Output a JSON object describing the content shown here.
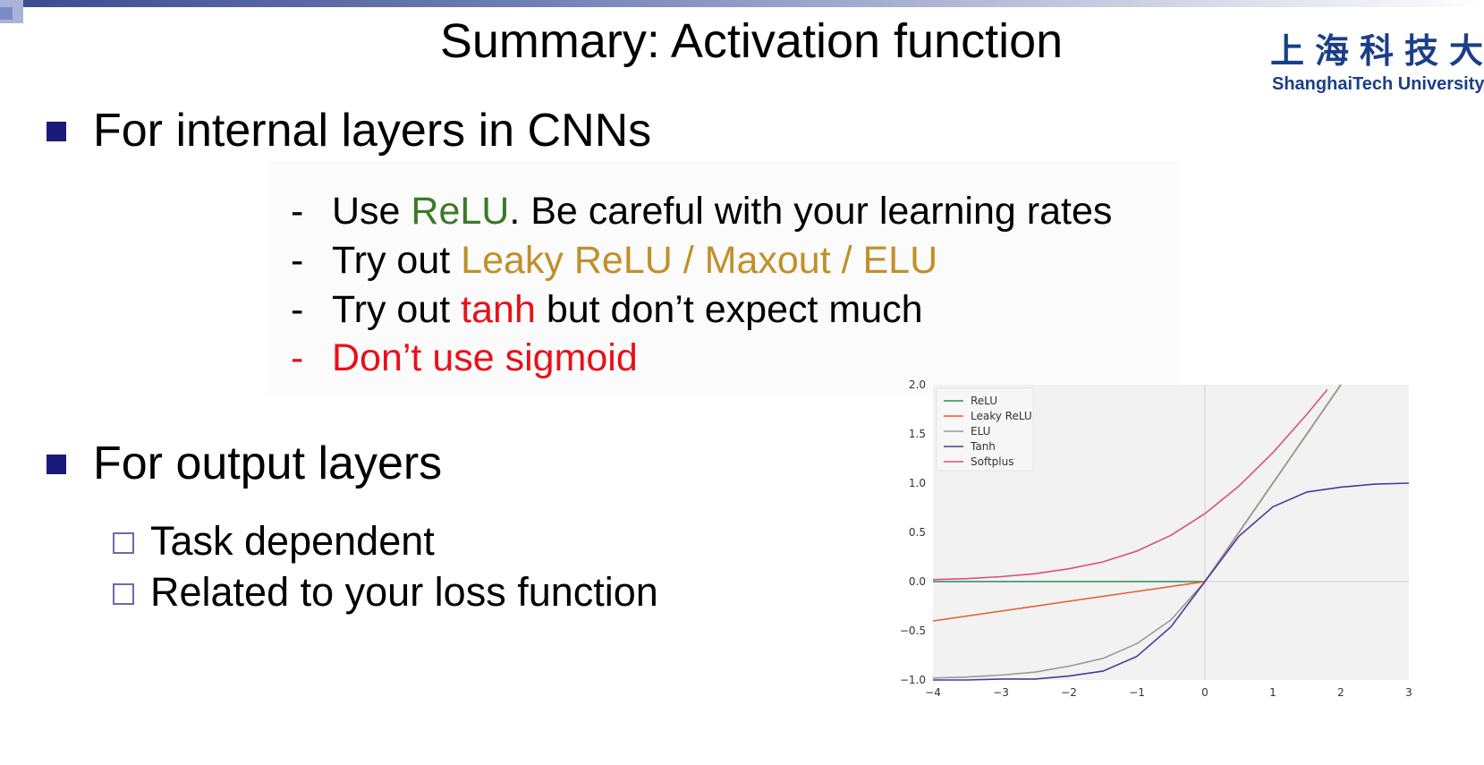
{
  "slide": {
    "title": "Summary: Activation function",
    "logo": {
      "chinese": "上海科技大学",
      "english": "ShanghaiTech University"
    },
    "colors": {
      "green": "#3a7a27",
      "gold": "#c0902a",
      "red": "#e8101a",
      "bullet": "#1a1a7a"
    },
    "section1": {
      "heading": "For internal layers in CNNs",
      "items": [
        {
          "dash": "-",
          "pre": "Use ",
          "hl": "ReLU",
          "post": ". Be careful with your learning rates"
        },
        {
          "dash": "-",
          "pre": "Try out ",
          "hl": "Leaky ReLU / Maxout / ELU",
          "post": ""
        },
        {
          "dash": "-",
          "pre": "Try out ",
          "hl": "tanh",
          "post": " but don’t expect much"
        },
        {
          "dash": "-",
          "pre": "",
          "hl": "Don’t use sigmoid",
          "post": ""
        }
      ]
    },
    "section2": {
      "heading": "For output layers",
      "items": [
        "Task dependent",
        "Related to your loss function"
      ]
    }
  },
  "chart_data": {
    "type": "line",
    "xlim": [
      -4,
      3
    ],
    "ylim": [
      -1.0,
      2.0
    ],
    "xticks": [
      "−4",
      "−3",
      "−2",
      "−1",
      "0",
      "1",
      "2",
      "3"
    ],
    "yticks": [
      "2.0",
      "1.5",
      "1.0",
      "0.5",
      "0.0",
      "−0.5",
      "−1.0"
    ],
    "legend_position": "top-left",
    "grid": false,
    "series": [
      {
        "name": "ReLU",
        "color": "#2e8a5a",
        "x": [
          -4,
          -3,
          -2,
          -1,
          0,
          0.5,
          1,
          1.5,
          2
        ],
        "y": [
          0,
          0,
          0,
          0,
          0,
          0.5,
          1,
          1.5,
          2
        ]
      },
      {
        "name": "Leaky ReLU",
        "color": "#e0612a",
        "x": [
          -4,
          -3,
          -2,
          -1,
          0,
          0.5,
          1,
          1.5,
          2
        ],
        "y": [
          -0.4,
          -0.3,
          -0.2,
          -0.1,
          0,
          0.5,
          1,
          1.5,
          2
        ]
      },
      {
        "name": "ELU",
        "color": "#9a9a9a",
        "x": [
          -4,
          -3.5,
          -3,
          -2.5,
          -2,
          -1.5,
          -1,
          -0.5,
          0,
          0.5,
          1,
          1.5,
          2
        ],
        "y": [
          -0.98,
          -0.97,
          -0.95,
          -0.92,
          -0.86,
          -0.78,
          -0.63,
          -0.39,
          0,
          0.5,
          1,
          1.5,
          2
        ]
      },
      {
        "name": "Tanh",
        "color": "#4b3a98",
        "x": [
          -4,
          -3.5,
          -3,
          -2.5,
          -2,
          -1.5,
          -1,
          -0.5,
          0,
          0.5,
          1,
          1.5,
          2,
          2.5,
          3
        ],
        "y": [
          -1.0,
          -1.0,
          -0.99,
          -0.99,
          -0.96,
          -0.91,
          -0.76,
          -0.46,
          0,
          0.46,
          0.76,
          0.91,
          0.96,
          0.99,
          1.0
        ]
      },
      {
        "name": "Softplus",
        "color": "#d9517a",
        "x": [
          -4,
          -3.5,
          -3,
          -2.5,
          -2,
          -1.5,
          -1,
          -0.5,
          0,
          0.5,
          1,
          1.5,
          1.8
        ],
        "y": [
          0.02,
          0.03,
          0.05,
          0.08,
          0.13,
          0.2,
          0.31,
          0.47,
          0.69,
          0.97,
          1.31,
          1.7,
          1.95
        ]
      }
    ]
  }
}
